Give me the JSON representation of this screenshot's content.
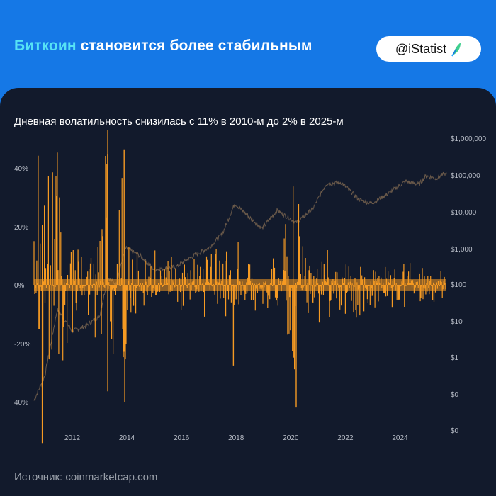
{
  "header": {
    "title_accent": "Биткоин",
    "title_rest": " становится более стабильным",
    "badge": "@iStatist",
    "badge_icon": "feather-logo-icon"
  },
  "colors": {
    "header_bg": "#1578e6",
    "card_bg": "#121a2c",
    "accent_title": "#56e3f5",
    "volatility": "#f59a23",
    "price": "#6b5a4a"
  },
  "source": "Источник: coinmarketcap.com",
  "chart_data": {
    "type": "bar",
    "title": "Дневная волатильность снизилась с 11% в 2010-м до 2% в 2025-м",
    "x_ticks": [
      "2012",
      "2014",
      "2016",
      "2018",
      "2020",
      "2022",
      "2024"
    ],
    "x_range": [
      2010.6,
      2025.7
    ],
    "y_left": {
      "ticks": [
        "40%",
        "20%",
        "0%",
        "-20%",
        "40%"
      ],
      "range": [
        -0.45,
        0.45
      ]
    },
    "y_right": {
      "ticks": [
        "$1,000,000",
        "$100,000",
        "$10,000",
        "$1,000",
        "$100",
        "$10",
        "$1",
        "$0",
        "$0"
      ],
      "scale": "log"
    },
    "series": [
      {
        "type": "bar",
        "note": "daily returns, approximate envelope by year",
        "x": [
          2010.6,
          2010.8,
          2011.0,
          2011.3,
          2011.6,
          2012.0,
          2012.5,
          2013.0,
          2013.3,
          2013.6,
          2013.9,
          2014.3,
          2015.0,
          2016.0,
          2017.0,
          2017.5,
          2018.0,
          2018.5,
          2019.0,
          2019.5,
          2020.2,
          2020.5,
          2021.0,
          2021.5,
          2022.0,
          2022.5,
          2023.0,
          2024.0,
          2025.0,
          2025.6
        ],
        "amplitude": [
          0.35,
          0.4,
          0.4,
          0.38,
          0.3,
          0.15,
          0.12,
          0.22,
          0.48,
          0.15,
          0.4,
          0.12,
          0.1,
          0.08,
          0.1,
          0.12,
          0.14,
          0.1,
          0.07,
          0.08,
          0.38,
          0.08,
          0.12,
          0.1,
          0.09,
          0.1,
          0.07,
          0.07,
          0.06,
          0.05
        ]
      },
      {
        "type": "line",
        "note": "price, USD, log scale",
        "x": [
          2010.6,
          2011.0,
          2011.45,
          2012.0,
          2012.5,
          2013.0,
          2013.3,
          2013.6,
          2013.95,
          2014.5,
          2015.0,
          2015.8,
          2016.5,
          2017.0,
          2017.5,
          2017.95,
          2018.5,
          2018.95,
          2019.5,
          2020.2,
          2020.8,
          2021.3,
          2021.85,
          2022.5,
          2022.95,
          2023.5,
          2024.2,
          2024.7,
          2024.95,
          2025.3,
          2025.6
        ],
        "y": [
          0.06,
          0.3,
          20,
          5,
          7,
          13,
          150,
          100,
          1000,
          600,
          250,
          300,
          650,
          1000,
          2500,
          17000,
          7000,
          3500,
          11000,
          5000,
          12000,
          60000,
          65000,
          22000,
          17000,
          30000,
          70000,
          58000,
          100000,
          84000,
          110000
        ]
      }
    ]
  }
}
